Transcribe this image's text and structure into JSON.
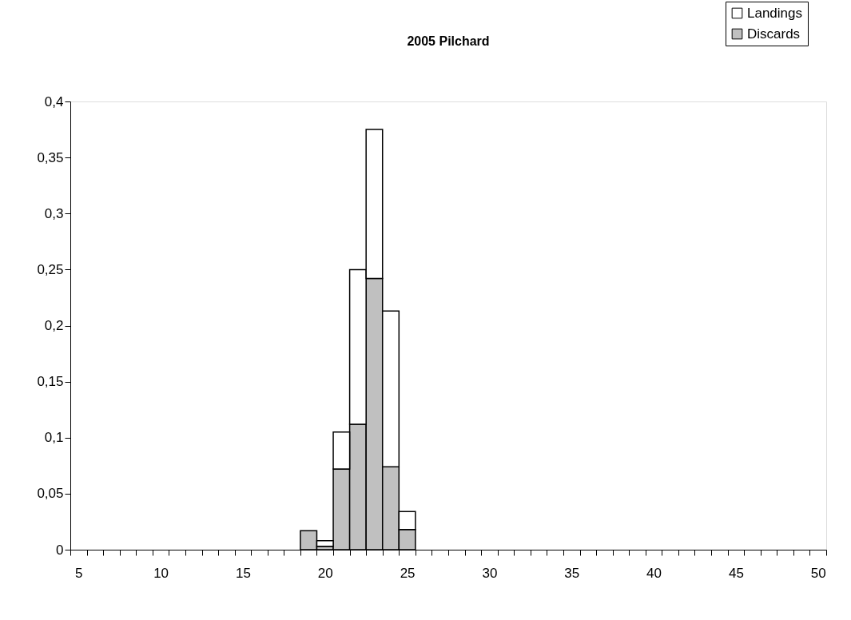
{
  "chart_data": {
    "type": "bar",
    "title": "2005 Pilchard",
    "stacked": true,
    "legend": "top right",
    "categories": [
      "5",
      null,
      null,
      null,
      null,
      "10",
      null,
      null,
      null,
      null,
      "15",
      null,
      null,
      null,
      null,
      "20",
      null,
      null,
      null,
      null,
      "25",
      null,
      null,
      null,
      null,
      "30",
      null,
      null,
      null,
      null,
      "35",
      null,
      null,
      null,
      null,
      "40",
      null,
      null,
      null,
      null,
      "45",
      null,
      null,
      null,
      null,
      "50"
    ],
    "series": [
      {
        "name": "Discards",
        "color": "#c0c0c0",
        "values": [
          null,
          null,
          null,
          null,
          null,
          null,
          null,
          null,
          null,
          null,
          null,
          null,
          null,
          null,
          0.017,
          0.003,
          0.072,
          0.112,
          0.242,
          0.074,
          0.018,
          null,
          null,
          null,
          null,
          null,
          null,
          null,
          null,
          null,
          null,
          null,
          null,
          null,
          null,
          null,
          null,
          null,
          null,
          null,
          null,
          null,
          null,
          null,
          null,
          null
        ]
      },
      {
        "name": "Landings",
        "color": "#ffffff",
        "values": [
          null,
          null,
          null,
          null,
          null,
          null,
          null,
          null,
          null,
          null,
          null,
          null,
          null,
          null,
          null,
          0.005,
          0.033,
          0.138,
          0.133,
          0.139,
          0.016,
          null,
          null,
          null,
          null,
          null,
          null,
          null,
          null,
          null,
          null,
          null,
          null,
          null,
          null,
          null,
          null,
          null,
          null,
          null,
          null,
          null,
          null,
          null,
          null,
          null
        ]
      }
    ],
    "ylim": [
      0,
      0.4
    ],
    "yticks": [
      0,
      {
        "value": 0.05,
        "label": "0,05"
      },
      {
        "value": 0.1,
        "label": "0,1"
      },
      {
        "value": 0.15,
        "label": "0,15"
      },
      {
        "value": 0.2,
        "label": "0,2"
      },
      {
        "value": 0.25,
        "label": "0,25"
      },
      {
        "value": 0.3,
        "label": "0,3"
      },
      {
        "value": 0.35,
        "label": "0,35"
      },
      {
        "value": 0.4,
        "label": "0,4"
      }
    ]
  }
}
